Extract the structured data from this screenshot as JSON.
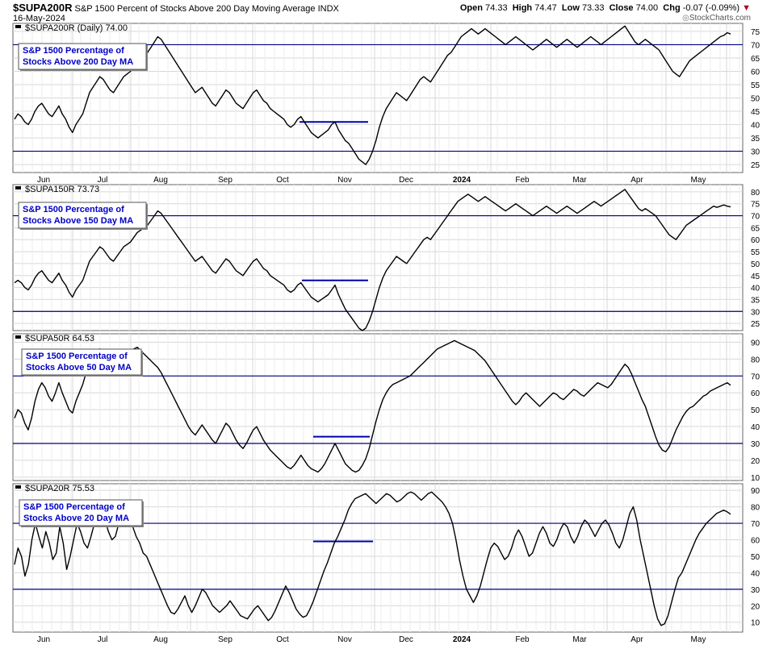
{
  "header": {
    "ticker": "$SUPA200R",
    "description": "S&P 1500 Percent of Stocks Above 200 Day Moving Average",
    "exchange": "INDX",
    "date": "16-May-2024",
    "brand": "StockCharts.com",
    "open_label": "Open",
    "open": "74.33",
    "high_label": "High",
    "high": "74.47",
    "low_label": "Low",
    "low": "73.33",
    "close_label": "Close",
    "close": "74.00",
    "chg_label": "Chg",
    "chg": "-0.07 (-0.09%)",
    "chg_arrow": "▼"
  },
  "colors": {
    "grid": "#d7d7d7",
    "line": "#000000",
    "reference_lines": "#000080",
    "annotation": "#0000c8",
    "frame": "#666666"
  },
  "x_axis_labels": [
    "Jun",
    "Jul",
    "Aug",
    "Sep",
    "Oct",
    "Nov",
    "Dec",
    "2024",
    "Feb",
    "Mar",
    "Apr",
    "May"
  ],
  "chart_data": [
    {
      "type": "line",
      "title": "$SUPA200R (Daily) 74.00",
      "annotation": "S&P 1500 Percentage of Stocks Above 200 Day MA",
      "ylim": [
        22,
        78
      ],
      "yticks": [
        25,
        30,
        35,
        40,
        45,
        50,
        55,
        60,
        65,
        70,
        75
      ],
      "reference_lines": [
        70,
        30
      ],
      "zone": [
        41,
        41
      ],
      "series": [
        {
          "x_start": "2023-05-15",
          "x_end": "2024-05-16",
          "values": [
            42,
            44,
            43,
            41,
            40,
            42,
            45,
            47,
            48,
            46,
            44,
            43,
            45,
            47,
            44,
            42,
            39,
            37,
            40,
            42,
            44,
            48,
            52,
            54,
            56,
            58,
            57,
            55,
            53,
            52,
            54,
            56,
            58,
            59,
            60,
            62,
            64,
            65,
            66,
            67,
            69,
            71,
            73,
            72,
            70,
            68,
            66,
            64,
            62,
            60,
            58,
            56,
            54,
            52,
            53,
            54,
            52,
            50,
            48,
            47,
            49,
            51,
            53,
            52,
            50,
            48,
            47,
            46,
            48,
            50,
            52,
            53,
            51,
            49,
            48,
            46,
            45,
            44,
            43,
            42,
            40,
            39,
            40,
            42,
            43,
            41,
            39,
            37,
            36,
            35,
            36,
            37,
            38,
            40,
            41,
            38,
            36,
            34,
            33,
            31,
            29,
            27,
            26,
            25,
            27,
            30,
            34,
            39,
            43,
            46,
            48,
            50,
            52,
            51,
            50,
            49,
            51,
            53,
            55,
            57,
            58,
            57,
            56,
            58,
            60,
            62,
            64,
            66,
            67,
            69,
            71,
            73,
            74,
            75,
            76,
            75,
            74,
            75,
            76,
            75,
            74,
            73,
            72,
            71,
            70,
            71,
            72,
            73,
            72,
            71,
            70,
            69,
            68,
            69,
            70,
            71,
            72,
            71,
            70,
            69,
            70,
            71,
            72,
            71,
            70,
            69,
            70,
            71,
            72,
            73,
            72,
            71,
            70,
            71,
            72,
            73,
            74,
            75,
            76,
            77,
            75,
            73,
            71,
            70,
            71,
            72,
            71,
            70,
            69,
            68,
            66,
            64,
            62,
            60,
            59,
            58,
            60,
            62,
            64,
            65,
            66,
            67,
            68,
            69,
            70,
            71,
            72,
            73,
            73.5,
            74.5,
            74
          ]
        }
      ]
    },
    {
      "type": "line",
      "title": "$SUPA150R 73.73",
      "annotation": "S&P 1500 Percentage of Stocks Above 150 Day MA",
      "ylim": [
        22,
        83
      ],
      "yticks": [
        25,
        30,
        35,
        40,
        45,
        50,
        55,
        60,
        65,
        70,
        75,
        80
      ],
      "reference_lines": [
        70,
        30
      ],
      "zone": [
        43,
        43
      ],
      "series": [
        {
          "x_start": "2023-05-15",
          "x_end": "2024-05-16",
          "values": [
            42,
            43,
            42,
            40,
            39,
            41,
            44,
            46,
            47,
            45,
            43,
            42,
            44,
            46,
            43,
            41,
            38,
            36,
            39,
            41,
            43,
            47,
            51,
            53,
            55,
            57,
            56,
            54,
            52,
            51,
            53,
            55,
            57,
            58,
            59,
            61,
            63,
            64,
            65,
            66,
            68,
            70,
            72,
            71,
            69,
            67,
            65,
            63,
            61,
            59,
            57,
            55,
            53,
            51,
            52,
            53,
            51,
            49,
            47,
            46,
            48,
            50,
            52,
            51,
            49,
            47,
            46,
            45,
            47,
            49,
            51,
            52,
            50,
            48,
            47,
            45,
            44,
            43,
            42,
            41,
            39,
            38,
            39,
            41,
            42,
            40,
            38,
            36,
            35,
            34,
            35,
            36,
            37,
            39,
            41,
            37,
            34,
            31,
            29,
            27,
            25,
            23,
            22,
            23,
            26,
            30,
            35,
            40,
            44,
            47,
            49,
            51,
            53,
            52,
            51,
            50,
            52,
            54,
            56,
            58,
            60,
            61,
            60,
            62,
            64,
            66,
            68,
            70,
            72,
            74,
            76,
            77,
            78,
            79,
            78,
            77,
            76,
            77,
            78,
            77,
            76,
            75,
            74,
            73,
            72,
            73,
            74,
            75,
            74,
            73,
            72,
            71,
            70,
            71,
            72,
            73,
            74,
            73,
            72,
            71,
            72,
            73,
            74,
            73,
            72,
            71,
            72,
            73,
            74,
            75,
            76,
            75,
            74,
            75,
            76,
            77,
            78,
            79,
            80,
            81,
            79,
            77,
            75,
            73,
            72,
            73,
            72,
            71,
            70,
            68,
            66,
            64,
            62,
            61,
            60,
            62,
            64,
            66,
            67,
            68,
            69,
            70,
            71,
            72,
            73,
            74,
            73.5,
            74,
            74.5,
            74,
            73.7
          ]
        }
      ]
    },
    {
      "type": "line",
      "title": "$SUPA50R 64.53",
      "annotation": "S&P 1500 Percentage of Stocks Above 50 Day MA",
      "ylim": [
        8,
        95
      ],
      "yticks": [
        10,
        20,
        30,
        40,
        50,
        60,
        70,
        80,
        90
      ],
      "reference_lines": [
        70,
        30
      ],
      "zone": [
        34,
        34
      ],
      "series": [
        {
          "x_start": "2023-05-15",
          "x_end": "2024-05-16",
          "values": [
            45,
            50,
            48,
            42,
            38,
            45,
            55,
            62,
            66,
            63,
            58,
            55,
            60,
            66,
            60,
            55,
            50,
            48,
            55,
            60,
            65,
            72,
            78,
            82,
            85,
            86,
            84,
            80,
            76,
            73,
            75,
            78,
            82,
            84,
            85,
            86,
            87,
            85,
            83,
            81,
            79,
            77,
            75,
            72,
            68,
            64,
            60,
            56,
            52,
            48,
            44,
            40,
            37,
            35,
            38,
            41,
            38,
            35,
            32,
            30,
            34,
            38,
            42,
            40,
            36,
            32,
            29,
            27,
            30,
            34,
            38,
            40,
            36,
            32,
            29,
            26,
            24,
            22,
            20,
            18,
            16,
            15,
            17,
            20,
            23,
            20,
            17,
            15,
            14,
            13,
            15,
            18,
            22,
            26,
            30,
            26,
            22,
            18,
            16,
            14,
            13,
            14,
            17,
            21,
            27,
            35,
            43,
            50,
            56,
            60,
            63,
            65,
            66,
            67,
            68,
            69,
            70,
            72,
            74,
            76,
            78,
            80,
            82,
            84,
            86,
            87,
            88,
            89,
            90,
            91,
            90,
            89,
            88,
            87,
            86,
            85,
            83,
            81,
            79,
            76,
            73,
            70,
            67,
            64,
            61,
            58,
            55,
            53,
            55,
            58,
            60,
            58,
            56,
            54,
            52,
            54,
            56,
            58,
            60,
            59,
            57,
            56,
            58,
            60,
            62,
            61,
            59,
            58,
            60,
            62,
            64,
            66,
            65,
            64,
            63,
            65,
            68,
            71,
            74,
            77,
            75,
            71,
            66,
            61,
            56,
            52,
            46,
            40,
            34,
            29,
            26,
            25,
            28,
            33,
            38,
            42,
            46,
            49,
            51,
            52,
            54,
            56,
            58,
            59,
            61,
            62,
            63,
            64,
            65,
            66,
            64.5
          ]
        }
      ]
    },
    {
      "type": "line",
      "title": "$SUPA20R 75.53",
      "annotation": "S&P 1500 Percentage of Stocks Above 20 Day MA",
      "ylim": [
        4,
        94
      ],
      "yticks": [
        10,
        20,
        30,
        40,
        50,
        60,
        70,
        80,
        90
      ],
      "reference_lines": [
        70,
        30
      ],
      "zone": [
        59,
        59
      ],
      "series": [
        {
          "x_start": "2023-05-15",
          "x_end": "2024-05-16",
          "values": [
            45,
            55,
            50,
            38,
            45,
            60,
            70,
            62,
            55,
            65,
            58,
            48,
            52,
            68,
            58,
            42,
            50,
            60,
            70,
            65,
            58,
            55,
            62,
            70,
            75,
            78,
            72,
            65,
            60,
            62,
            70,
            75,
            78,
            72,
            68,
            62,
            58,
            52,
            50,
            45,
            40,
            35,
            30,
            25,
            20,
            16,
            15,
            18,
            22,
            26,
            20,
            16,
            20,
            25,
            30,
            28,
            24,
            20,
            18,
            16,
            18,
            20,
            23,
            20,
            17,
            14,
            13,
            12,
            15,
            18,
            20,
            17,
            14,
            11,
            13,
            17,
            22,
            27,
            32,
            28,
            23,
            18,
            15,
            13,
            14,
            18,
            23,
            29,
            35,
            41,
            46,
            52,
            58,
            62,
            67,
            72,
            78,
            82,
            85,
            86,
            87,
            88,
            86,
            84,
            82,
            84,
            86,
            88,
            87,
            85,
            83,
            84,
            86,
            88,
            89,
            88,
            86,
            84,
            86,
            88,
            89,
            87,
            85,
            83,
            80,
            76,
            70,
            60,
            48,
            38,
            30,
            26,
            22,
            26,
            32,
            40,
            48,
            55,
            58,
            56,
            52,
            48,
            50,
            55,
            62,
            66,
            62,
            56,
            50,
            52,
            58,
            64,
            68,
            64,
            58,
            56,
            60,
            66,
            70,
            68,
            62,
            58,
            62,
            68,
            72,
            70,
            66,
            62,
            66,
            70,
            72,
            69,
            64,
            58,
            55,
            60,
            68,
            76,
            80,
            72,
            60,
            50,
            40,
            30,
            20,
            12,
            8,
            9,
            14,
            22,
            30,
            37,
            40,
            45,
            50,
            55,
            60,
            64,
            67,
            70,
            72,
            74,
            76,
            77,
            78,
            77,
            75.5
          ]
        }
      ]
    }
  ]
}
